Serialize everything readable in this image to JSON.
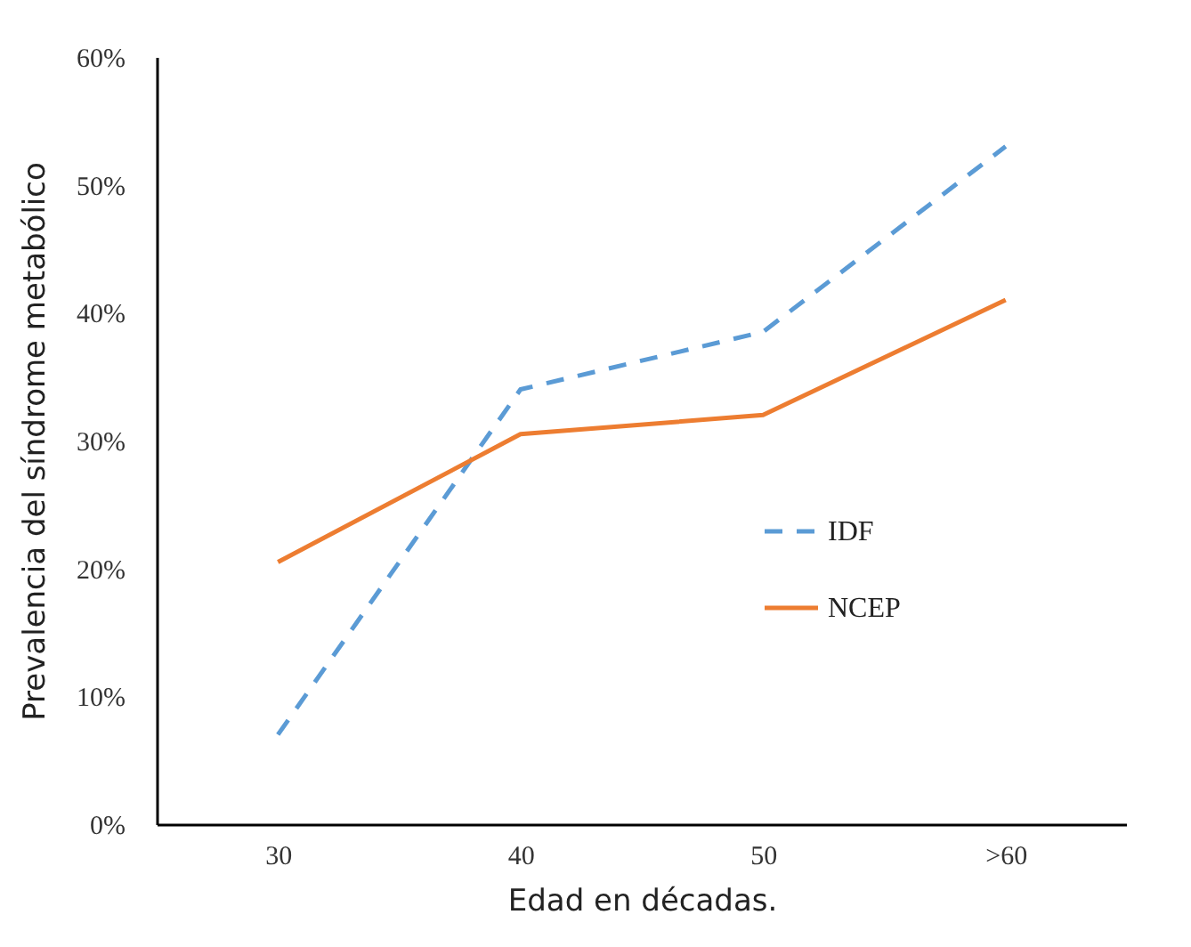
{
  "chart_data": {
    "type": "line",
    "xlabel": "Edad en décadas.",
    "ylabel": "Prevalencia del síndrome metabólico",
    "categories": [
      "30",
      "40",
      "50",
      ">60"
    ],
    "series": [
      {
        "name": "IDF",
        "color": "#5b9bd5",
        "line_style": "dashed",
        "values": [
          7,
          34,
          38.5,
          53
        ]
      },
      {
        "name": "NCEP",
        "color": "#ed7d31",
        "line_style": "solid",
        "values": [
          20.5,
          30.5,
          32,
          41
        ]
      }
    ],
    "ylim": [
      0,
      60
    ],
    "yticks": [
      {
        "value": 0,
        "label": "0%"
      },
      {
        "value": 10,
        "label": "10%"
      },
      {
        "value": 20,
        "label": "20%"
      },
      {
        "value": 30,
        "label": "30%"
      },
      {
        "value": 40,
        "label": "40%"
      },
      {
        "value": 50,
        "label": "50%"
      },
      {
        "value": 60,
        "label": "60%"
      }
    ],
    "grid": false,
    "legend": "right",
    "marker": "none"
  }
}
